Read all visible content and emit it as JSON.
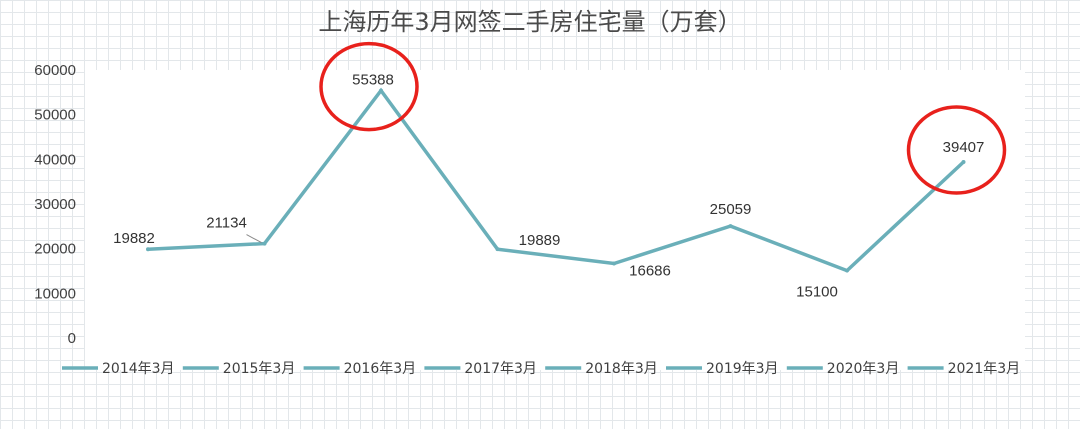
{
  "chart_data": {
    "type": "line",
    "title": "上海历年3月网签二手房住宅量（万套）",
    "categories": [
      "2014年3月",
      "2015年3月",
      "2016年3月",
      "2017年3月",
      "2018年3月",
      "2019年3月",
      "2020年3月",
      "2021年3月"
    ],
    "values": [
      19882,
      21134,
      55388,
      19889,
      16686,
      25059,
      15100,
      39407
    ],
    "data_labels": [
      "19882",
      "21134",
      "55388",
      "19889",
      "16686",
      "25059",
      "15100",
      "39407"
    ],
    "yticks": [
      "0",
      "10000",
      "20000",
      "30000",
      "40000",
      "50000",
      "60000"
    ],
    "ylim": [
      0,
      60000
    ],
    "grid": true,
    "legend_position": "bottom",
    "highlighted_points": [
      "2016年3月",
      "2021年3月"
    ],
    "colors": {
      "line": "#6aafb9",
      "highlight_circle": "#e8211c",
      "plot_bg": "#ffffff"
    }
  }
}
